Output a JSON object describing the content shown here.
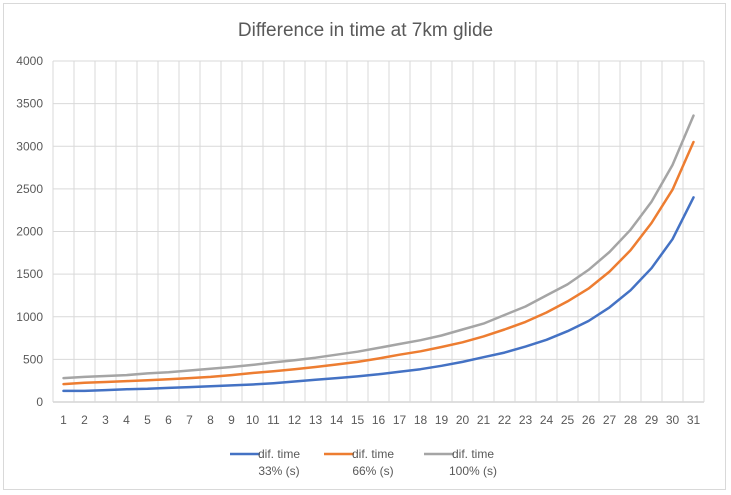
{
  "chart_data": {
    "type": "line",
    "title": "Difference in time at 7km glide",
    "xlabel": "",
    "ylabel": "",
    "x": [
      1,
      2,
      3,
      4,
      5,
      6,
      7,
      8,
      9,
      10,
      11,
      12,
      13,
      14,
      15,
      16,
      17,
      18,
      19,
      20,
      21,
      22,
      23,
      24,
      25,
      26,
      27,
      28,
      29,
      30,
      31
    ],
    "ylim": [
      0,
      4000
    ],
    "yticks": [
      0,
      500,
      1000,
      1500,
      2000,
      2500,
      3000,
      3500,
      4000
    ],
    "grid": true,
    "legend_position": "bottom",
    "series": [
      {
        "name_line1": "dif. time",
        "name_line2": "33% (s)",
        "color": "#4472c4",
        "values": [
          130,
          130,
          140,
          150,
          155,
          165,
          175,
          185,
          195,
          205,
          220,
          240,
          260,
          280,
          300,
          325,
          355,
          385,
          425,
          470,
          525,
          580,
          650,
          730,
          830,
          950,
          1110,
          1310,
          1570,
          1910,
          2400
        ]
      },
      {
        "name_line1": "dif. time",
        "name_line2": "66% (s)",
        "color": "#ed7d31",
        "values": [
          210,
          225,
          235,
          245,
          255,
          268,
          280,
          295,
          315,
          340,
          360,
          385,
          410,
          440,
          470,
          510,
          555,
          595,
          645,
          700,
          770,
          850,
          940,
          1050,
          1180,
          1330,
          1530,
          1780,
          2100,
          2490,
          3050
        ]
      },
      {
        "name_line1": "dif. time",
        "name_line2": "100% (s)",
        "color": "#a5a5a5",
        "values": [
          280,
          295,
          305,
          315,
          335,
          350,
          370,
          390,
          410,
          435,
          465,
          490,
          520,
          555,
          590,
          635,
          680,
          725,
          780,
          850,
          920,
          1020,
          1120,
          1250,
          1380,
          1550,
          1760,
          2020,
          2350,
          2780,
          3360
        ]
      }
    ]
  }
}
